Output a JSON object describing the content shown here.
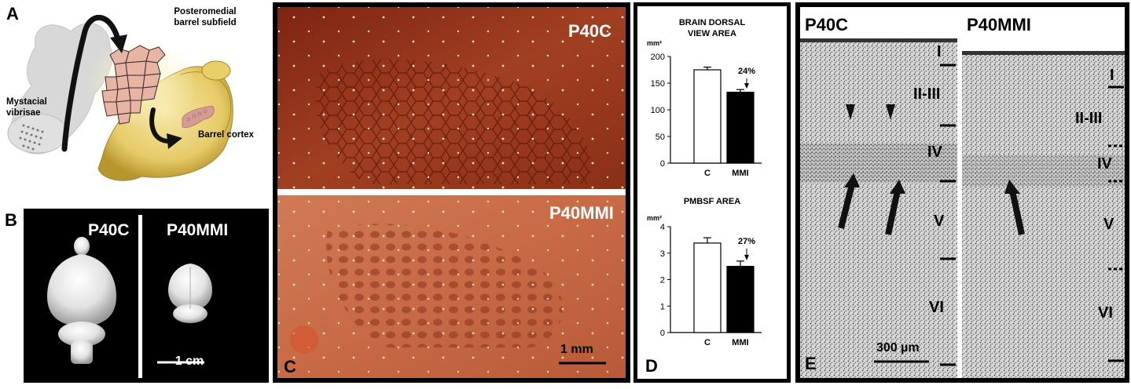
{
  "panels": {
    "a": {
      "letter": "A",
      "label_pmbsf": [
        "Posteromedial",
        "barrel subfield"
      ],
      "label_vibrissae": [
        "Mystacial",
        "vibrisae"
      ],
      "label_barrel_cortex": "Barrel cortex"
    },
    "b": {
      "letter": "B",
      "label_left": "P40C",
      "label_right": "P40MMI",
      "scale": "1 cm"
    },
    "c": {
      "letter": "C",
      "label_top": "P40C",
      "label_bottom": "P40MMI",
      "scale": "1 mm"
    },
    "d": {
      "letter": "D",
      "colors": {
        "control": "#ffffff",
        "mmi": "#000000"
      }
    },
    "e": {
      "letter": "E",
      "label_left": "P40C",
      "label_right": "P40MMI",
      "scale": "300 µm",
      "layers_left": [
        "I",
        "II-III",
        "IV",
        "V",
        "VI"
      ],
      "layers_right": [
        "I",
        "II-III",
        "IV",
        "V",
        "VI"
      ]
    }
  },
  "chart_data": [
    {
      "type": "bar",
      "title": [
        "BRAIN DORSAL",
        "VIEW AREA"
      ],
      "unit": "mm²",
      "categories": [
        "C",
        "MMI"
      ],
      "values": [
        175,
        133
      ],
      "errors": [
        5,
        5
      ],
      "ylim": [
        0,
        200
      ],
      "yticks": [
        0,
        50,
        100,
        150,
        200
      ],
      "annotation": "24%"
    },
    {
      "type": "bar",
      "title": [
        "PMBSF AREA"
      ],
      "unit": "mm²",
      "categories": [
        "C",
        "MMI"
      ],
      "values": [
        3.38,
        2.5
      ],
      "errors": [
        0.2,
        0.2
      ],
      "ylim": [
        0,
        4
      ],
      "yticks": [
        0,
        1,
        2,
        3,
        4
      ],
      "annotation": "27%"
    }
  ]
}
